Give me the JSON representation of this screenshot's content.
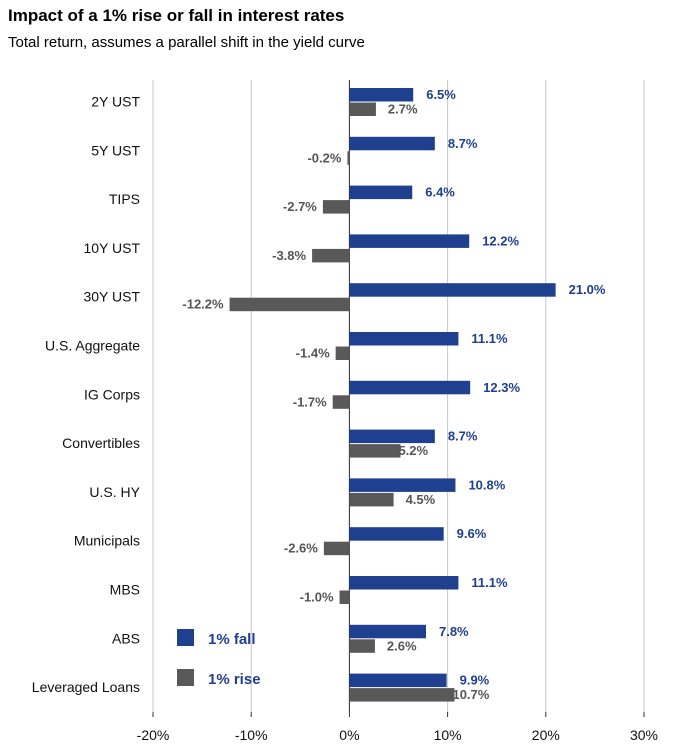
{
  "title": "Impact of a 1% rise or fall in interest rates",
  "subtitle": "Total return, assumes a parallel shift in the yield curve",
  "colors": {
    "fall": "#1f3f8f",
    "rise": "#595959",
    "grid": "#c8c8c8"
  },
  "chart_data": {
    "type": "bar",
    "orientation": "horizontal",
    "title": "Impact of a 1% rise or fall in interest rates",
    "subtitle": "Total return, assumes a parallel shift in the yield curve",
    "categories": [
      "2Y UST",
      "5Y UST",
      "TIPS",
      "10Y UST",
      "30Y UST",
      "U.S. Aggregate",
      "IG Corps",
      "Convertibles",
      "U.S. HY",
      "Municipals",
      "MBS",
      "ABS",
      "Leveraged Loans"
    ],
    "series": [
      {
        "name": "1% fall",
        "values": [
          6.5,
          8.7,
          6.4,
          12.2,
          21.0,
          11.1,
          12.3,
          8.7,
          10.8,
          9.6,
          11.1,
          7.8,
          9.9
        ],
        "labels": [
          "6.5%",
          "8.7%",
          "6.4%",
          "12.2%",
          "21.0%",
          "11.1%",
          "12.3%",
          "8.7%",
          "10.8%",
          "9.6%",
          "11.1%",
          "7.8%",
          "9.9%"
        ]
      },
      {
        "name": "1% rise",
        "values": [
          2.7,
          -0.2,
          -2.7,
          -3.8,
          -12.2,
          -1.4,
          -1.7,
          5.2,
          4.5,
          -2.6,
          -1.0,
          2.6,
          10.7
        ],
        "labels": [
          "2.7%",
          "-0.2%",
          "-2.7%",
          "-3.8%",
          "-12.2%",
          "-1.4%",
          "-1.7%",
          "5.2%",
          "4.5%",
          "-2.6%",
          "-1.0%",
          "2.6%",
          "10.7%"
        ]
      }
    ],
    "xlim": [
      -20,
      30
    ],
    "xticks": [
      -20,
      -10,
      0,
      10,
      20,
      30
    ],
    "xtick_labels": [
      "-20%",
      "-10%",
      "0%",
      "10%",
      "20%",
      "30%"
    ],
    "grid": "vertical",
    "legend": {
      "position": "bottom-left",
      "entries": [
        "1% fall",
        "1% rise"
      ]
    }
  }
}
